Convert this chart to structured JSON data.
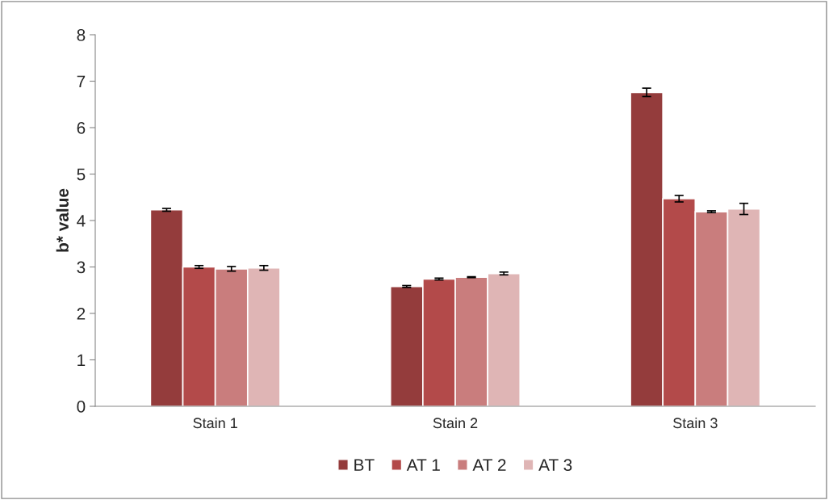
{
  "chart_data": {
    "type": "bar",
    "ylabel": "b* value",
    "categories": [
      "Stain 1",
      "Stain 2",
      "Stain 3"
    ],
    "series": [
      {
        "name": "BT",
        "color": "#943c3c",
        "values": [
          4.23,
          2.58,
          6.76
        ],
        "errors": [
          0.03,
          0.02,
          0.09
        ]
      },
      {
        "name": "AT 1",
        "color": "#b34a4a",
        "values": [
          3.0,
          2.74,
          4.47
        ],
        "errors": [
          0.03,
          0.02,
          0.07
        ]
      },
      {
        "name": "AT 2",
        "color": "#c97d7d",
        "values": [
          2.96,
          2.78,
          4.19
        ],
        "errors": [
          0.05,
          0.01,
          0.02
        ]
      },
      {
        "name": "AT 3",
        "color": "#dfb5b5",
        "values": [
          2.98,
          2.86,
          4.25
        ],
        "errors": [
          0.05,
          0.03,
          0.12
        ]
      }
    ],
    "ylim": [
      0,
      8
    ],
    "yticks": [
      0,
      1,
      2,
      3,
      4,
      5,
      6,
      7,
      8
    ],
    "grid": false,
    "legend": "bottom"
  }
}
